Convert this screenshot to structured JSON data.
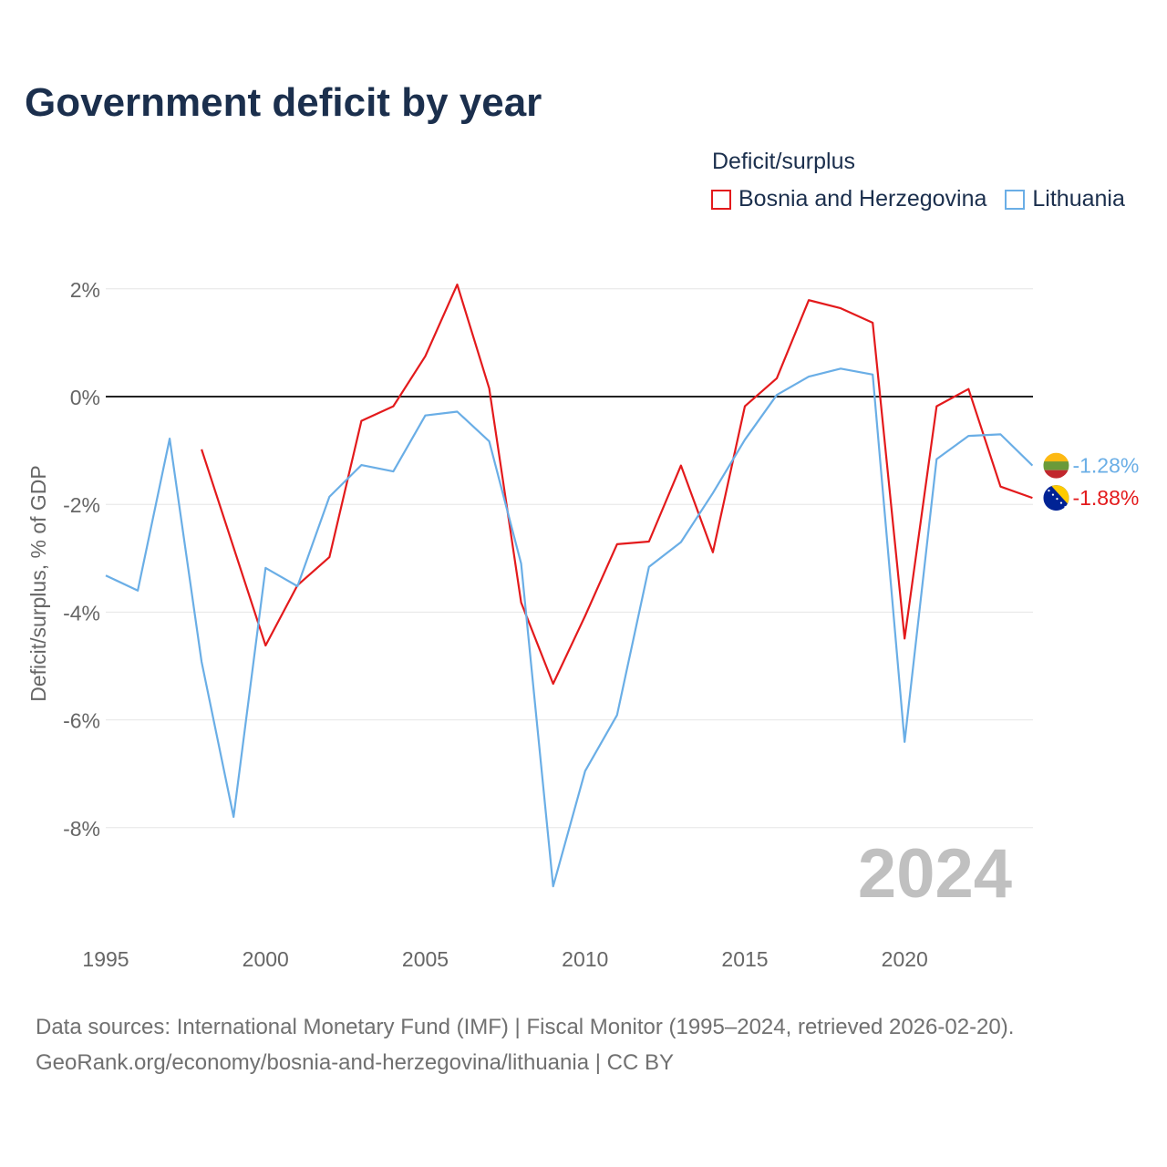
{
  "title": "Government deficit by year",
  "legend": {
    "title": "Deficit/surplus",
    "items": [
      {
        "label": "Bosnia and Herzegovina",
        "color": "#e31a1c"
      },
      {
        "label": "Lithuania",
        "color": "#6aaee6"
      }
    ]
  },
  "chart_data": {
    "type": "line",
    "title": "Government deficit by year",
    "xlabel": "",
    "ylabel": "Deficit/surplus, % of GDP",
    "xlim": [
      1995,
      2024
    ],
    "ylim": [
      -10,
      3
    ],
    "x_ticks": [
      1995,
      2000,
      2005,
      2010,
      2015,
      2020
    ],
    "y_ticks": [
      2,
      0,
      -2,
      -4,
      -6,
      -8
    ],
    "y_tick_labels": [
      "2%",
      "0%",
      "-2%",
      "-4%",
      "-6%",
      "-8%"
    ],
    "grid": true,
    "watermark_year": "2024",
    "series": [
      {
        "name": "Bosnia and Herzegovina",
        "color": "#e31a1c",
        "x": [
          1998,
          1999,
          2000,
          2001,
          2002,
          2003,
          2004,
          2005,
          2006,
          2007,
          2008,
          2009,
          2010,
          2011,
          2012,
          2013,
          2014,
          2015,
          2016,
          2017,
          2018,
          2019,
          2020,
          2021,
          2022,
          2023,
          2024
        ],
        "values": [
          -0.98,
          -2.8,
          -4.62,
          -3.5,
          -2.98,
          -0.45,
          -0.18,
          0.75,
          2.08,
          0.15,
          -3.82,
          -5.33,
          -4.07,
          -2.74,
          -2.69,
          -1.28,
          -2.89,
          -0.18,
          0.34,
          1.79,
          1.64,
          1.37,
          -4.49,
          -0.18,
          0.14,
          -1.67,
          -1.88
        ],
        "end_label": "-1.88%"
      },
      {
        "name": "Lithuania",
        "color": "#6aaee6",
        "x": [
          1995,
          1996,
          1997,
          1998,
          1999,
          2000,
          2001,
          2002,
          2003,
          2004,
          2005,
          2006,
          2007,
          2008,
          2009,
          2010,
          2011,
          2012,
          2013,
          2014,
          2015,
          2016,
          2017,
          2018,
          2019,
          2020,
          2021,
          2022,
          2023,
          2024
        ],
        "values": [
          -3.32,
          -3.6,
          -0.78,
          -4.92,
          -7.8,
          -3.18,
          -3.52,
          -1.86,
          -1.27,
          -1.39,
          -0.35,
          -0.28,
          -0.83,
          -3.1,
          -9.09,
          -6.95,
          -5.91,
          -3.16,
          -2.7,
          -1.79,
          -0.8,
          0.03,
          0.37,
          0.52,
          0.41,
          -6.41,
          -1.16,
          -0.73,
          -0.7,
          -1.28
        ],
        "end_label": "-1.28%"
      }
    ]
  },
  "source": {
    "line1": "Data sources: International Monetary Fund (IMF) | Fiscal Monitor (1995–2024, retrieved 2026-02-20).",
    "line2": "GeoRank.org/economy/bosnia-and-herzegovina/lithuania | CC BY"
  }
}
